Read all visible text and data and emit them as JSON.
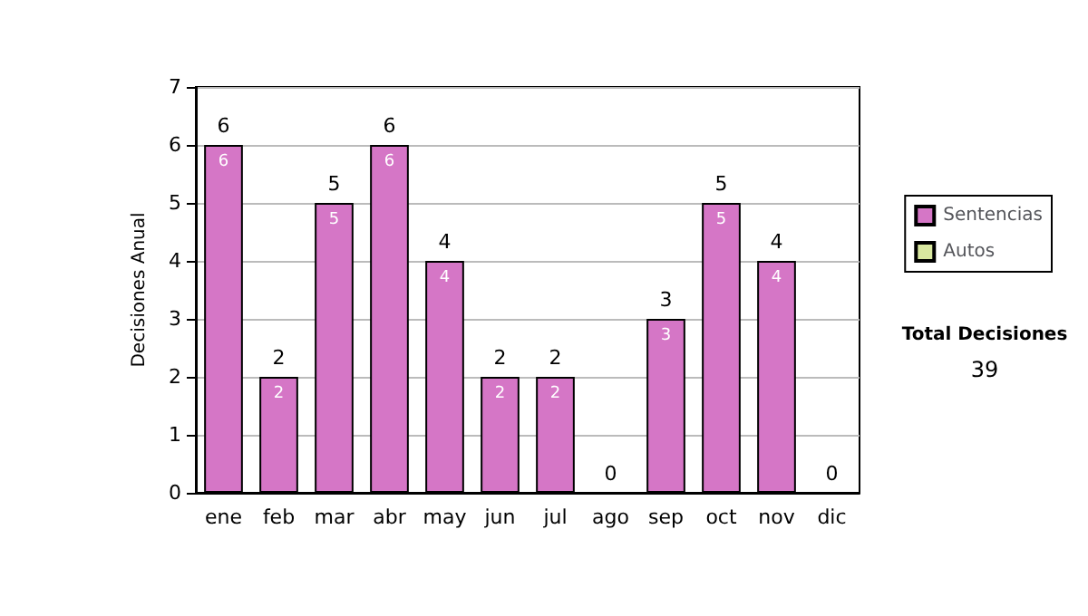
{
  "chart_data": {
    "type": "bar",
    "ylabel": "Decisiones Anual",
    "categories": [
      "ene",
      "feb",
      "mar",
      "abr",
      "may",
      "jun",
      "jul",
      "ago",
      "sep",
      "oct",
      "nov",
      "dic"
    ],
    "series": [
      {
        "name": "Sentencias",
        "color": "#d576c6",
        "values": [
          6,
          2,
          5,
          6,
          4,
          2,
          2,
          0,
          3,
          5,
          4,
          0
        ],
        "value_labels": [
          "6",
          "2",
          "5",
          "6",
          "4",
          "2",
          "2",
          null,
          "3",
          "5",
          "4",
          null
        ]
      },
      {
        "name": "Autos",
        "color": "#d9e8a0",
        "values": [
          0,
          0,
          0,
          0,
          0,
          0,
          0,
          0,
          0,
          0,
          0,
          0
        ]
      }
    ],
    "stacked": true,
    "ylim": [
      0,
      7
    ],
    "yticks": [
      0,
      1,
      2,
      3,
      4,
      5,
      6,
      7
    ],
    "grid": "y",
    "legend": "right",
    "totals": [
      "6",
      "2",
      "5",
      "6",
      "4",
      "2",
      "2",
      "0",
      "3",
      "5",
      "4",
      "0"
    ],
    "annotations": [
      "Total Decisiones",
      "39"
    ]
  }
}
